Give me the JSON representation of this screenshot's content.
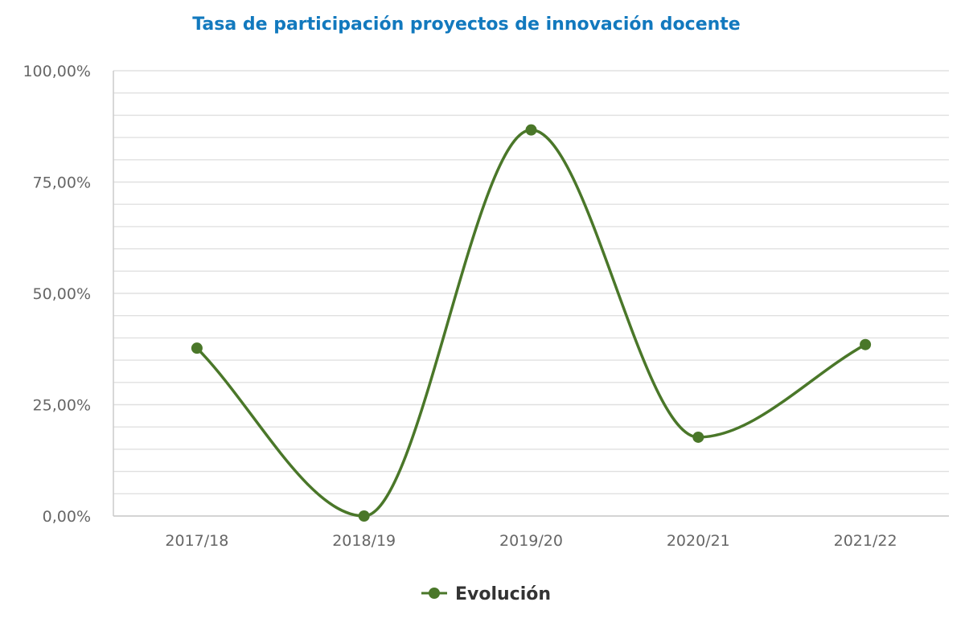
{
  "chart_data": {
    "type": "line",
    "title": "Tasa de participación proyectos de innovación docente",
    "xlabel": "",
    "ylabel": "",
    "categories": [
      "2017/18",
      "2018/19",
      "2019/20",
      "2020/21",
      "2021/22"
    ],
    "series": [
      {
        "name": "Evolución",
        "values": [
          37.7,
          0.0,
          86.7,
          17.7,
          38.5
        ],
        "color": "#4a7729"
      }
    ],
    "ylim": [
      0,
      100
    ],
    "y_ticks": [
      0,
      25,
      50,
      75,
      100
    ],
    "y_tick_labels": [
      "0,00%",
      "25,00%",
      "50,00%",
      "75,00%",
      "100,00%"
    ],
    "grid": true,
    "smooth": true,
    "legend_position": "bottom-center"
  },
  "colors": {
    "title": "#1279be",
    "series": "#4a7729",
    "grid": "#e0e0e0",
    "axis": "#cccccc",
    "tick_text": "#666666",
    "legend_text": "#333333"
  }
}
